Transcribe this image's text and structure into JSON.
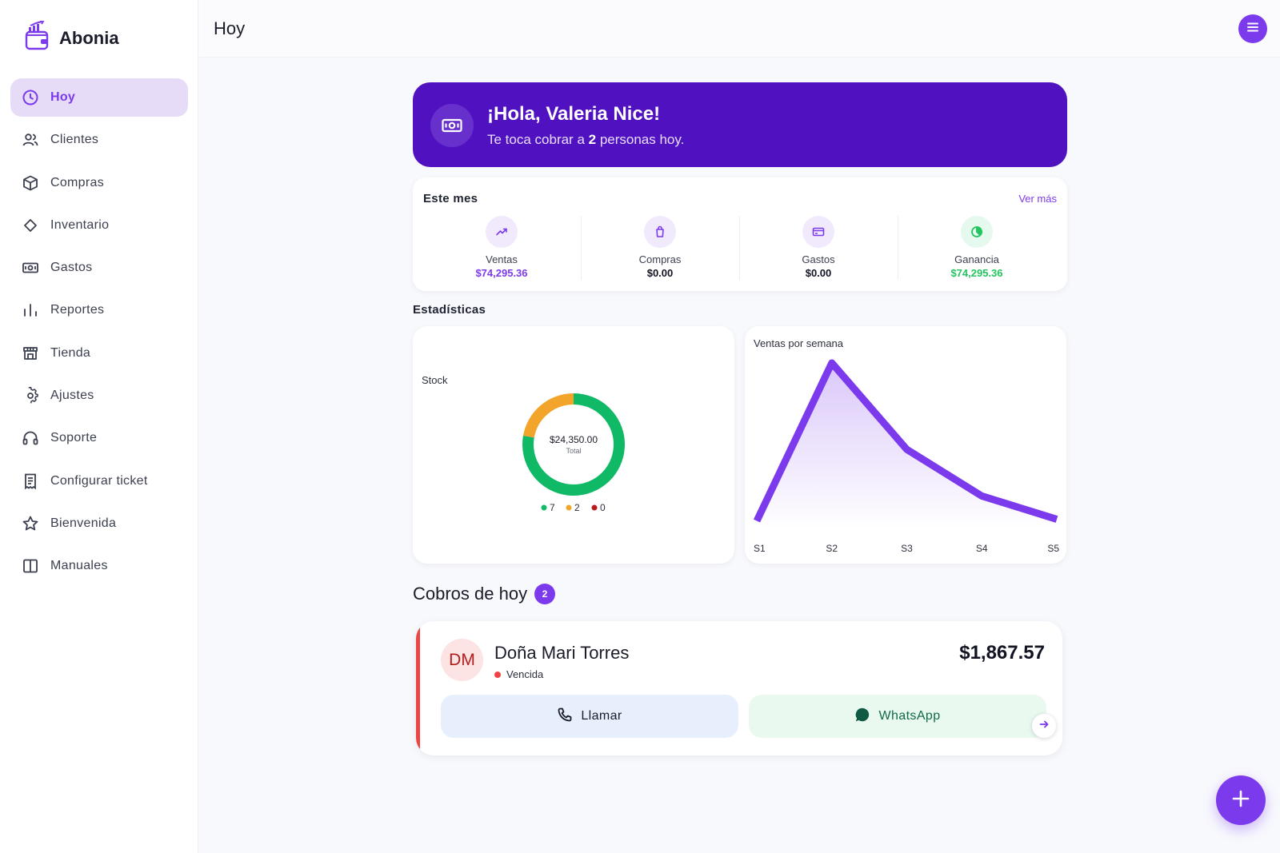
{
  "brand": {
    "name": "Abonia",
    "logo": "wallet-chart-logo"
  },
  "header": {
    "title": "Hoy",
    "menu_icon": "menu-icon"
  },
  "sidebar": {
    "items": [
      {
        "label": "Hoy",
        "icon": "clock-icon",
        "active": true
      },
      {
        "label": "Clientes",
        "icon": "users-icon"
      },
      {
        "label": "Compras",
        "icon": "box-icon"
      },
      {
        "label": "Inventario",
        "icon": "diamond-icon"
      },
      {
        "label": "Gastos",
        "icon": "banknote-icon"
      },
      {
        "label": "Reportes",
        "icon": "bar-chart-icon"
      },
      {
        "label": "Tienda",
        "icon": "store-icon"
      },
      {
        "label": "Ajustes",
        "icon": "gear-icon"
      },
      {
        "label": "Soporte",
        "icon": "headset-icon"
      },
      {
        "label": "Configurar ticket",
        "icon": "receipt-icon"
      },
      {
        "label": "Bienvenida",
        "icon": "star-icon"
      },
      {
        "label": "Manuales",
        "icon": "book-icon"
      }
    ]
  },
  "banner": {
    "greeting": "¡Hola, Valeria Nice!",
    "sub_before": "Te toca cobrar a ",
    "count": "2",
    "sub_after": " personas hoy."
  },
  "month": {
    "title": "Este mes",
    "link": "Ver más",
    "stats": [
      {
        "label": "Ventas",
        "value": "$74,295.36",
        "color": "#7c3aed",
        "icon": "trend-up-icon"
      },
      {
        "label": "Compras",
        "value": "$0.00",
        "color": "#111322",
        "icon": "shopping-bag-icon"
      },
      {
        "label": "Gastos",
        "value": "$0.00",
        "color": "#111322",
        "icon": "card-icon"
      },
      {
        "label": "Ganancia",
        "value": "$74,295.36",
        "color": "#22c55e",
        "icon": "pie-icon"
      }
    ]
  },
  "stats_section": {
    "title": "Estadísticas"
  },
  "chart_data": [
    {
      "type": "pie",
      "title": "Stock",
      "center_value": "$24,350.00",
      "center_label": "Total",
      "categories": [
        "7",
        "2",
        "0"
      ],
      "values": [
        7,
        2,
        0
      ],
      "colors": [
        "#10b965",
        "#f2a52a",
        "#b71c1c"
      ]
    },
    {
      "type": "area",
      "title": "Ventas por semana",
      "categories": [
        "S1",
        "S2",
        "S3",
        "S4",
        "S5"
      ],
      "values": [
        5,
        100,
        48,
        20,
        6
      ],
      "color": "#7c3aed"
    }
  ],
  "cobros": {
    "title": "Cobros de hoy",
    "count": "2",
    "items": [
      {
        "initials": "DM",
        "name": "Doña Mari Torres",
        "status": "Vencida",
        "amount": "$1,867.57",
        "call_label": "Llamar",
        "whatsapp_label": "WhatsApp"
      }
    ]
  }
}
